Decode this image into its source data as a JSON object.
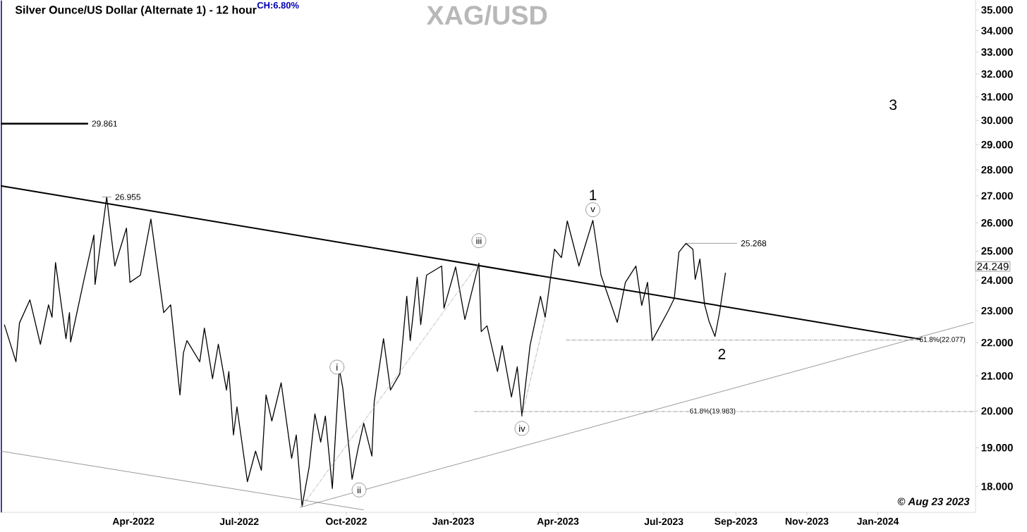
{
  "chart_data": {
    "type": "line",
    "title": "XAG/USD",
    "subtitle": "Silver Ounce/US Dollar (Alternate 1) - 12 hour",
    "log": true,
    "xlim": [
      "2021-12-08",
      "2024-03-25"
    ],
    "ylim": [
      17.36,
      35.46
    ],
    "xticks": [
      {
        "value": "2022-04-01",
        "label": "Apr-2022"
      },
      {
        "value": "2022-07-01",
        "label": "Jul-2022"
      },
      {
        "value": "2022-10-01",
        "label": "Oct-2022"
      },
      {
        "value": "2023-01-01",
        "label": "Jan-2023"
      },
      {
        "value": "2023-04-01",
        "label": "Apr-2023"
      },
      {
        "value": "2023-07-01",
        "label": "Jul-2023"
      },
      {
        "value": "2023-09-01",
        "label": "Sep-2023"
      },
      {
        "value": "2023-11-01",
        "label": "Nov-2023"
      },
      {
        "value": "2024-01-01",
        "label": "Jan-2024"
      }
    ],
    "yticks": [
      {
        "value": 18,
        "label": "18.000"
      },
      {
        "value": 19,
        "label": "19.000"
      },
      {
        "value": 20,
        "label": "20.000"
      },
      {
        "value": 21,
        "label": "21.000"
      },
      {
        "value": 22,
        "label": "22.000"
      },
      {
        "value": 23,
        "label": "23.000"
      },
      {
        "value": 24,
        "label": "24.000"
      },
      {
        "value": 25,
        "label": "25.000"
      },
      {
        "value": 26,
        "label": "26.000"
      },
      {
        "value": 27,
        "label": "27.000"
      },
      {
        "value": 28,
        "label": "28.000"
      },
      {
        "value": 29,
        "label": "29.000"
      },
      {
        "value": 30,
        "label": "30.000"
      },
      {
        "value": 31,
        "label": "31.000"
      },
      {
        "value": 32,
        "label": "32.000"
      },
      {
        "value": 33,
        "label": "33.000"
      },
      {
        "value": 34,
        "label": "34.000"
      },
      {
        "value": 35,
        "label": "35.000"
      }
    ],
    "series": [
      {
        "color": "#000000",
        "x": [
          "2021-12-11",
          "2021-12-21",
          "2021-12-24",
          "2022-01-02",
          "2022-01-11",
          "2022-01-18",
          "2022-01-21",
          "2022-01-24",
          "2022-02-02",
          "2022-02-05",
          "2022-02-06",
          "2022-02-17",
          "2022-02-26",
          "2022-02-27",
          "2022-03-09",
          "2022-03-16",
          "2022-03-26",
          "2022-03-29",
          "2022-04-07",
          "2022-04-16",
          "2022-04-27",
          "2022-05-03",
          "2022-05-11",
          "2022-05-14",
          "2022-05-17",
          "2022-05-28",
          "2022-06-01",
          "2022-06-08",
          "2022-06-13",
          "2022-06-20",
          "2022-06-22",
          "2022-06-26",
          "2022-06-29",
          "2022-07-08",
          "2022-07-15",
          "2022-07-20",
          "2022-07-24",
          "2022-07-29",
          "2022-08-06",
          "2022-08-15",
          "2022-08-19",
          "2022-08-24",
          "2022-08-30",
          "2022-09-04",
          "2022-09-09",
          "2022-09-13",
          "2022-09-19",
          "2022-09-25",
          "2022-09-28",
          "2022-10-06",
          "2022-10-11",
          "2022-10-16",
          "2022-10-23",
          "2022-10-25",
          "2022-11-02",
          "2022-11-08",
          "2022-11-16",
          "2022-11-22",
          "2022-11-25",
          "2022-12-01",
          "2022-12-04",
          "2022-12-09",
          "2022-12-22",
          "2022-12-24",
          "2023-01-03",
          "2023-01-11",
          "2023-01-23",
          "2023-01-25",
          "2023-01-30",
          "2023-02-08",
          "2023-02-12",
          "2023-02-20",
          "2023-02-25",
          "2023-03-01",
          "2023-03-08",
          "2023-03-17",
          "2023-03-21",
          "2023-03-29",
          "2023-04-04",
          "2023-04-09",
          "2023-04-19",
          "2023-05-01",
          "2023-05-08",
          "2023-05-22",
          "2023-05-29",
          "2023-06-07",
          "2023-06-12",
          "2023-06-17",
          "2023-06-21",
          "2023-07-05",
          "2023-07-10",
          "2023-07-14",
          "2023-07-20",
          "2023-07-26",
          "2023-07-28",
          "2023-08-01",
          "2023-08-05",
          "2023-08-09",
          "2023-08-14",
          "2023-08-18",
          "2023-08-23"
        ],
        "values": [
          22.56,
          21.42,
          22.61,
          23.35,
          21.95,
          23.19,
          22.79,
          24.6,
          22.12,
          22.94,
          22.02,
          23.93,
          25.56,
          23.86,
          26.955,
          24.48,
          25.81,
          23.93,
          24.17,
          26.14,
          22.94,
          23.19,
          20.45,
          21.69,
          22.06,
          21.42,
          22.45,
          20.92,
          21.95,
          20.59,
          21.13,
          19.34,
          20.11,
          18.12,
          18.91,
          18.41,
          20.45,
          19.72,
          20.8,
          18.72,
          19.34,
          17.51,
          18.48,
          19.92,
          19.15,
          19.86,
          17.95,
          21.21,
          20.65,
          18.18,
          18.96,
          19.66,
          18.78,
          20.25,
          22.12,
          20.59,
          21.06,
          23.47,
          22.06,
          24.1,
          22.56,
          24.17,
          24.48,
          23.08,
          24.45,
          22.72,
          24.58,
          22.34,
          22.52,
          21.13,
          21.91,
          20.39,
          21.27,
          19.86,
          21.91,
          23.47,
          22.79,
          25.06,
          24.77,
          26.07,
          24.48,
          26.09,
          24.17,
          22.63,
          23.93,
          24.48,
          23.17,
          23.93,
          22.06,
          23.01,
          23.4,
          24.96,
          25.268,
          25.06,
          24.03,
          24.72,
          23.21,
          22.65,
          22.19,
          22.96,
          24.249
        ]
      },
      {
        "color": "#000000",
        "x": [
          "2021-12-08",
          "2024-02-07"
        ],
        "values": [
          27.38,
          22.1
        ]
      },
      {
        "color": "#000000",
        "x": [
          "2021-12-08",
          "2022-02-21"
        ],
        "values": [
          29.861,
          29.861
        ]
      },
      {
        "color": "#808080",
        "x": [
          "2022-08-22",
          "2024-03-23"
        ],
        "values": [
          17.48,
          22.63
        ]
      },
      {
        "color": "#808080",
        "x": [
          "2021-12-08",
          "2022-10-16"
        ],
        "values": [
          18.91,
          17.42
        ]
      },
      {
        "color": "#808080",
        "x": [
          "2022-03-05",
          "2022-03-13"
        ],
        "values": [
          26.955,
          26.955
        ]
      },
      {
        "color": "#808080",
        "x": [
          "2023-07-20",
          "2023-09-02"
        ],
        "values": [
          25.268,
          25.268
        ]
      },
      {
        "color": "#a0a0a0",
        "line_style": "dashed",
        "x": [
          "2022-08-24",
          "2023-01-23"
        ],
        "values": [
          17.51,
          24.58
        ]
      },
      {
        "color": "#a0a0a0",
        "line_style": "dashed",
        "x": [
          "2023-03-01",
          "2023-03-21"
        ],
        "values": [
          19.86,
          22.79
        ]
      },
      {
        "color": "#808080",
        "line_style": "dashed",
        "x": [
          "2023-04-08",
          "2024-02-05"
        ],
        "values": [
          22.077,
          22.077
        ]
      },
      {
        "color": "#808080",
        "line_style": "dashed",
        "x": [
          "2023-01-19",
          "2024-03-25"
        ],
        "values": [
          19.983,
          19.983
        ]
      }
    ],
    "annotations": [
      {
        "text": "i",
        "x": "2022-09-23",
        "y": 21.26
      },
      {
        "text": "ii",
        "x": "2022-10-12",
        "y": 17.91
      },
      {
        "text": "iii",
        "x": "2023-01-23",
        "y": 25.36
      },
      {
        "text": "iv",
        "x": "2023-03-01",
        "y": 19.52
      },
      {
        "text": "v",
        "x": "2023-05-01",
        "y": 26.48
      },
      {
        "text": "26.955",
        "x": "2022-03-13",
        "y": 26.955
      },
      {
        "text": "25.268",
        "x": "2023-09-02",
        "y": 25.268
      },
      {
        "text": "29.861",
        "x": "2022-02-21",
        "y": 29.861
      },
      {
        "text": "61.8%(22.077)",
        "x": "2024-02-05",
        "y": 22.077
      },
      {
        "text": "61.8%(19.983)",
        "x": "2023-08-12",
        "y": 19.983
      },
      "1",
      "2",
      "3",
      "CH:6.80%",
      "24.249",
      "© Aug 23 2023"
    ]
  }
}
